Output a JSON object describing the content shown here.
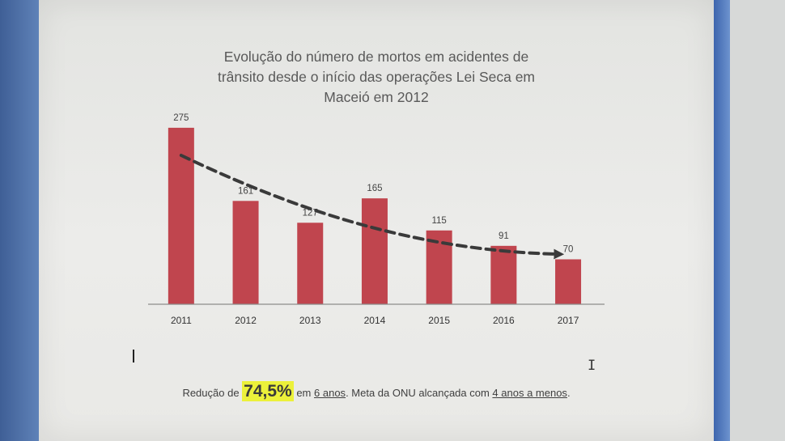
{
  "chart_data": {
    "type": "bar",
    "title": "Evolução do número de mortos em acidentes de trânsito desde o início das operações Lei Seca em Maceió em 2012",
    "title_lines": [
      "Evolução do número de mortos em acidentes de",
      "trânsito desde o início das operações Lei Seca em",
      "Maceió em 2012"
    ],
    "categories": [
      "2011",
      "2012",
      "2013",
      "2014",
      "2015",
      "2016",
      "2017"
    ],
    "values": [
      275,
      161,
      127,
      165,
      115,
      91,
      70
    ],
    "data_labels": [
      "275",
      "161",
      "127",
      "165",
      "115",
      "91",
      "70"
    ],
    "ylim": [
      0,
      290
    ],
    "xlabel": "",
    "ylabel": "",
    "grid": false,
    "legend": "none",
    "bar_color": "#c0454e",
    "trend_line": {
      "style": "dashed-arrow",
      "color": "#3a3a3a",
      "start_value": 232,
      "end_value": 78
    }
  },
  "footer": {
    "prefix": "Redução de ",
    "highlight": "74,5%",
    "mid1": " em ",
    "link1": "6 anos",
    "mid2": ". Meta da ONU alcançada com ",
    "link2": "4 anos a menos",
    "suffix": ".",
    "highlight_color": "#ecf13a"
  }
}
